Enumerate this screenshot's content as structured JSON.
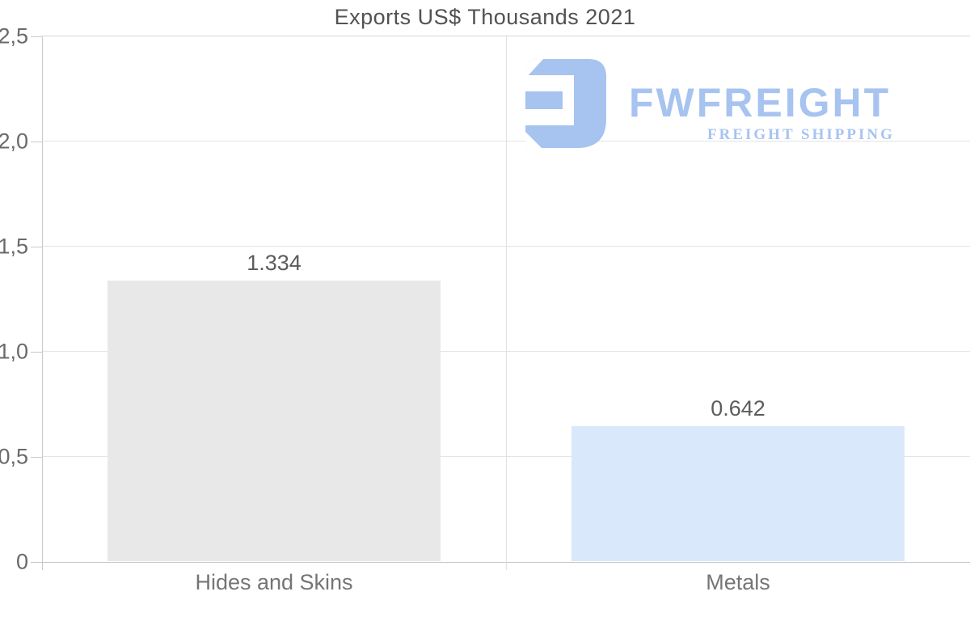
{
  "title": "Exports US$ Thousands 2021",
  "watermark": {
    "brand": "FWFREIGHT",
    "tagline": "FREIGHT SHIPPING",
    "color": "#a7c3f0"
  },
  "chart_data": {
    "type": "bar",
    "title": "Exports US$ Thousands 2021",
    "categories": [
      "Hides and Skins",
      "Metals"
    ],
    "values": [
      1.334,
      0.642
    ],
    "value_labels": [
      "1.334",
      "0.642"
    ],
    "bar_colors": [
      "#e8e8e8",
      "#d9e8fa"
    ],
    "ylim": [
      0,
      2.5
    ],
    "ytick_step": 0.5,
    "ytick_labels": [
      "0",
      "0,5",
      "1,0",
      "1,5",
      "2,0",
      "2,5"
    ],
    "grid": true,
    "legend": false,
    "xlabel": "",
    "ylabel": ""
  },
  "style": {
    "grid_color": "#e4e4e4",
    "axis_color": "#c9c9c9",
    "top_border_color": "#d8d8d8",
    "separator_color": "#e1e1e1",
    "title_color": "#525252",
    "tick_label_color": "#6a6a6a",
    "value_label_color": "#5c5c5c",
    "category_label_color": "#757575"
  }
}
